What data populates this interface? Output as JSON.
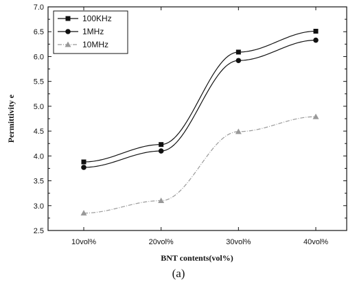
{
  "chart_data": {
    "type": "line",
    "categories": [
      "10vol%",
      "20vol%",
      "30vol%",
      "40vol%"
    ],
    "xlabel": "BNT contents(vol%)",
    "ylabel": "Permittivity e",
    "ylim": [
      2.5,
      7.0
    ],
    "yticks": [
      "2.5",
      "3.0",
      "3.5",
      "4.0",
      "4.5",
      "5.0",
      "5.5",
      "6.0",
      "6.5",
      "7.0"
    ],
    "legend_position": "top-left",
    "caption": "(a)",
    "series": [
      {
        "name": "100KHz",
        "marker": "square",
        "color": "#111111",
        "values": [
          3.88,
          4.23,
          6.09,
          6.51
        ]
      },
      {
        "name": "1MHz",
        "marker": "circle",
        "color": "#111111",
        "values": [
          3.77,
          4.1,
          5.92,
          6.33
        ]
      },
      {
        "name": "10MHz",
        "marker": "triangle",
        "color": "#999999",
        "values": [
          2.85,
          3.1,
          4.49,
          4.79
        ]
      }
    ]
  }
}
